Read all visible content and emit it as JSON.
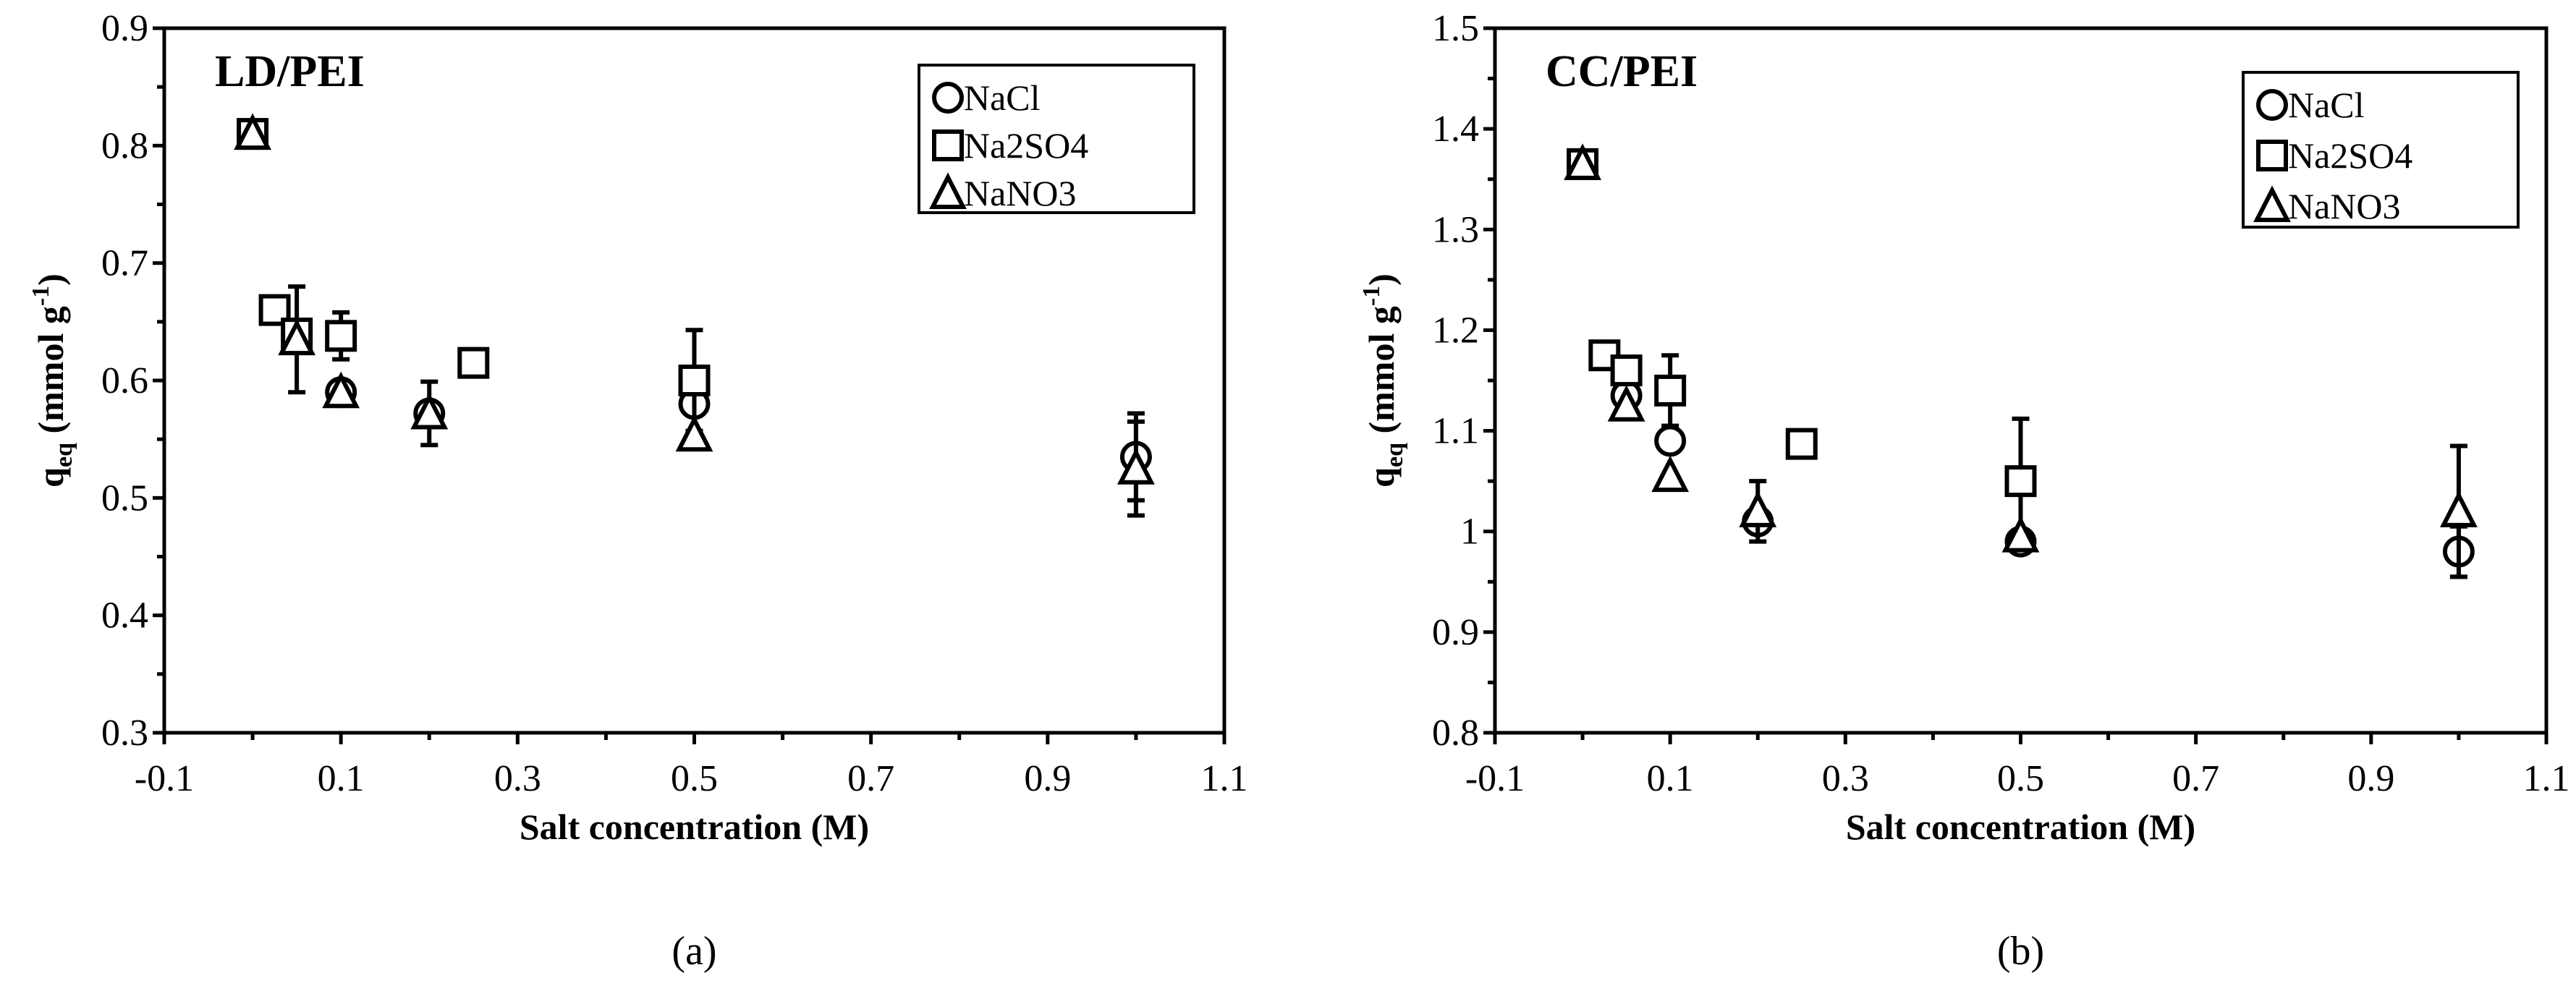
{
  "chart_data": [
    {
      "type": "scatter",
      "panel_label": "(a)",
      "title": "LD/PEI",
      "xlabel": "Salt concentration (M)",
      "ylabel": "q",
      "ylabel_sub": "eq",
      "ylabel_unit": " (mmol g",
      "ylabel_sup": "-1",
      "ylabel_close": ")",
      "xlim": [
        -0.1,
        1.1
      ],
      "ylim": [
        0.3,
        0.9
      ],
      "xticks": [
        "-0.1",
        "0.1",
        "0.3",
        "0.5",
        "0.7",
        "0.9",
        "1.1"
      ],
      "yticks": [
        "0.3",
        "0.4",
        "0.5",
        "0.6",
        "0.7",
        "0.8",
        "0.9"
      ],
      "grid": false,
      "legend_position": "top-right",
      "series": [
        {
          "name": "NaCl",
          "marker": "circle",
          "points": [
            {
              "x": 0,
              "y": 0.81
            },
            {
              "x": 0.05,
              "y": 0.64
            },
            {
              "x": 0.1,
              "y": 0.59
            },
            {
              "x": 0.2,
              "y": 0.572
            },
            {
              "x": 0.5,
              "y": 0.58
            },
            {
              "x": 1.0,
              "y": 0.535,
              "err": 0.037
            }
          ]
        },
        {
          "name": "Na2SO4",
          "marker": "square",
          "points": [
            {
              "x": 0,
              "y": 0.81
            },
            {
              "x": 0.025,
              "y": 0.66
            },
            {
              "x": 0.05,
              "y": 0.64
            },
            {
              "x": 0.1,
              "y": 0.638,
              "err": 0.02
            },
            {
              "x": 0.25,
              "y": 0.615
            },
            {
              "x": 0.5,
              "y": 0.6,
              "err": 0.043
            }
          ]
        },
        {
          "name": "NaNO3",
          "marker": "triangle",
          "points": [
            {
              "x": 0,
              "y": 0.81
            },
            {
              "x": 0.05,
              "y": 0.635,
              "err": 0.045
            },
            {
              "x": 0.1,
              "y": 0.59
            },
            {
              "x": 0.2,
              "y": 0.572,
              "err": 0.027
            },
            {
              "x": 0.5,
              "y": 0.553
            },
            {
              "x": 1.0,
              "y": 0.525,
              "err": 0.04
            }
          ]
        }
      ]
    },
    {
      "type": "scatter",
      "panel_label": "(b)",
      "title": "CC/PEI",
      "xlabel": "Salt concentration (M)",
      "ylabel": "q",
      "ylabel_sub": "eq",
      "ylabel_unit": " (mmol g",
      "ylabel_sup": "-1",
      "ylabel_close": ")",
      "xlim": [
        -0.1,
        1.1
      ],
      "ylim": [
        0.8,
        1.5
      ],
      "xticks": [
        "-0.1",
        "0.1",
        "0.3",
        "0.5",
        "0.7",
        "0.9",
        "1.1"
      ],
      "yticks": [
        "0.8",
        "0.9",
        "1",
        "1.1",
        "1.2",
        "1.3",
        "1.4",
        "1.5"
      ],
      "grid": false,
      "legend_position": "top-right",
      "series": [
        {
          "name": "NaCl",
          "marker": "circle",
          "points": [
            {
              "x": 0,
              "y": 1.365
            },
            {
              "x": 0.05,
              "y": 1.135
            },
            {
              "x": 0.1,
              "y": 1.09
            },
            {
              "x": 0.2,
              "y": 1.01
            },
            {
              "x": 0.5,
              "y": 0.99
            },
            {
              "x": 1.0,
              "y": 0.98,
              "err": 0.025
            }
          ]
        },
        {
          "name": "Na2SO4",
          "marker": "square",
          "points": [
            {
              "x": 0,
              "y": 1.365
            },
            {
              "x": 0.025,
              "y": 1.175
            },
            {
              "x": 0.05,
              "y": 1.16
            },
            {
              "x": 0.1,
              "y": 1.14,
              "err": 0.035
            },
            {
              "x": 0.25,
              "y": 1.087
            },
            {
              "x": 0.5,
              "y": 1.05,
              "err": 0.062
            }
          ]
        },
        {
          "name": "NaNO3",
          "marker": "triangle",
          "points": [
            {
              "x": 0,
              "y": 1.365
            },
            {
              "x": 0.05,
              "y": 1.125
            },
            {
              "x": 0.1,
              "y": 1.055
            },
            {
              "x": 0.2,
              "y": 1.02,
              "err": 0.03
            },
            {
              "x": 0.5,
              "y": 0.995
            },
            {
              "x": 1.0,
              "y": 1.02,
              "err": 0.065
            }
          ]
        }
      ]
    }
  ]
}
